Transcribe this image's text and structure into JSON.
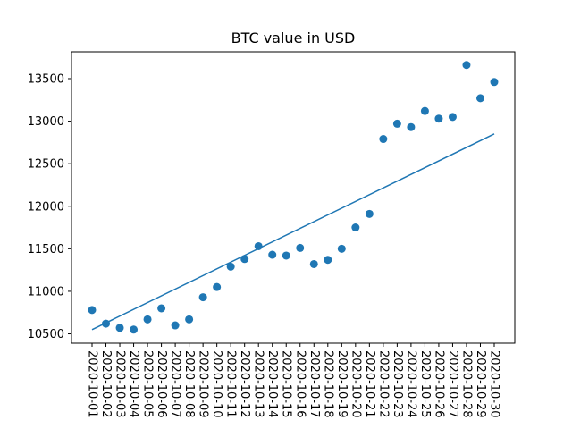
{
  "chart_data": {
    "type": "scatter",
    "title": "BTC value in USD",
    "xlabel": "",
    "ylabel": "",
    "x": [
      "2020-10-01",
      "2020-10-02",
      "2020-10-03",
      "2020-10-04",
      "2020-10-05",
      "2020-10-06",
      "2020-10-07",
      "2020-10-08",
      "2020-10-09",
      "2020-10-10",
      "2020-10-11",
      "2020-10-12",
      "2020-10-13",
      "2020-10-14",
      "2020-10-15",
      "2020-10-16",
      "2020-10-17",
      "2020-10-18",
      "2020-10-19",
      "2020-10-20",
      "2020-10-21",
      "2020-10-22",
      "2020-10-23",
      "2020-10-24",
      "2020-10-25",
      "2020-10-26",
      "2020-10-27",
      "2020-10-28",
      "2020-10-29",
      "2020-10-30"
    ],
    "series": [
      {
        "type": "scatter",
        "values": [
          10780,
          10620,
          10570,
          10550,
          10670,
          10800,
          10600,
          10670,
          10930,
          11050,
          11290,
          11380,
          11530,
          11430,
          11420,
          11510,
          11320,
          11370,
          11500,
          11750,
          11910,
          12790,
          12970,
          12930,
          13120,
          13030,
          13050,
          13660,
          13270,
          13460
        ]
      },
      {
        "type": "line",
        "start": 10550,
        "end": 12850
      }
    ],
    "yticks": [
      10500,
      11000,
      11500,
      12000,
      12500,
      13000,
      13500
    ],
    "ylim": [
      10390,
      13815
    ],
    "grid": false,
    "legend": "none",
    "colors": {
      "series": "#1f77b4",
      "axis": "#000000"
    }
  }
}
